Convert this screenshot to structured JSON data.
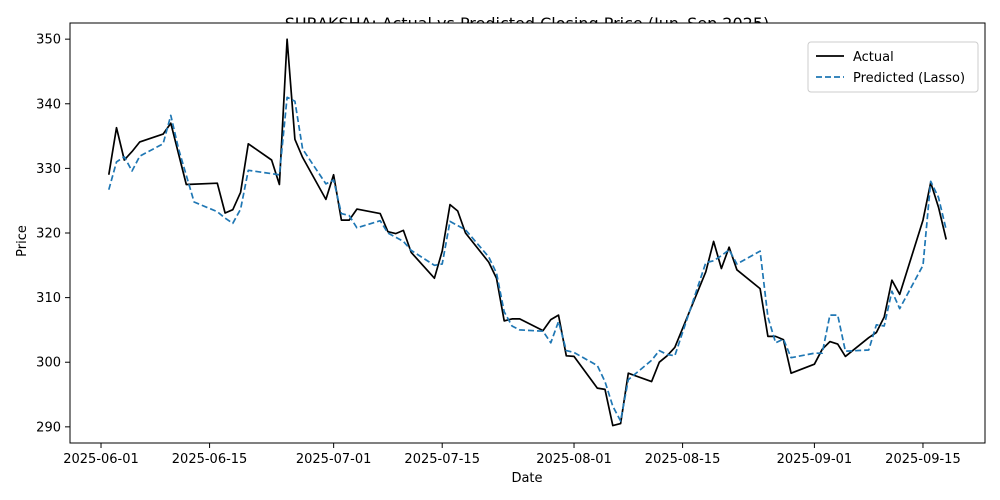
{
  "chart_data": {
    "type": "line",
    "title": "SURAKSHA: Actual vs Predicted Closing Price (Jun–Sep 2025)",
    "xlabel": "Date",
    "ylabel": "Price",
    "xlim": [
      "2025-05-28",
      "2025-09-23"
    ],
    "ylim": [
      287.5,
      352.5
    ],
    "x_ticks": [
      "2025-06-01",
      "2025-06-15",
      "2025-07-01",
      "2025-07-15",
      "2025-08-01",
      "2025-08-15",
      "2025-09-01",
      "2025-09-15"
    ],
    "y_ticks": [
      290,
      300,
      310,
      320,
      330,
      340,
      350
    ],
    "grid": false,
    "legend": "top-right",
    "series": [
      {
        "name": "Actual",
        "color": "#000000",
        "style": "solid",
        "points": [
          [
            "2025-06-02",
            329.0
          ],
          [
            "2025-06-03",
            336.3
          ],
          [
            "2025-06-04",
            331.3
          ],
          [
            "2025-06-05",
            332.6
          ],
          [
            "2025-06-06",
            334.1
          ],
          [
            "2025-06-09",
            335.3
          ],
          [
            "2025-06-10",
            337.0
          ],
          [
            "2025-06-12",
            327.5
          ],
          [
            "2025-06-16",
            327.7
          ],
          [
            "2025-06-17",
            323.1
          ],
          [
            "2025-06-18",
            323.6
          ],
          [
            "2025-06-19",
            326.3
          ],
          [
            "2025-06-20",
            333.8
          ],
          [
            "2025-06-23",
            331.3
          ],
          [
            "2025-06-24",
            327.5
          ],
          [
            "2025-06-25",
            350.0
          ],
          [
            "2025-06-26",
            334.5
          ],
          [
            "2025-06-27",
            331.7
          ],
          [
            "2025-06-30",
            325.2
          ],
          [
            "2025-07-01",
            329.0
          ],
          [
            "2025-07-02",
            322.0
          ],
          [
            "2025-07-03",
            322.0
          ],
          [
            "2025-07-04",
            323.7
          ],
          [
            "2025-07-07",
            323.0
          ],
          [
            "2025-07-08",
            320.2
          ],
          [
            "2025-07-09",
            319.9
          ],
          [
            "2025-07-10",
            320.4
          ],
          [
            "2025-07-11",
            317.0
          ],
          [
            "2025-07-14",
            313.0
          ],
          [
            "2025-07-15",
            317.2
          ],
          [
            "2025-07-16",
            324.4
          ],
          [
            "2025-07-17",
            323.4
          ],
          [
            "2025-07-18",
            320.0
          ],
          [
            "2025-07-21",
            315.5
          ],
          [
            "2025-07-22",
            313.0
          ],
          [
            "2025-07-23",
            306.4
          ],
          [
            "2025-07-24",
            306.7
          ],
          [
            "2025-07-25",
            306.7
          ],
          [
            "2025-07-28",
            304.9
          ],
          [
            "2025-07-29",
            306.6
          ],
          [
            "2025-07-30",
            307.3
          ],
          [
            "2025-07-31",
            301.0
          ],
          [
            "2025-08-01",
            300.9
          ],
          [
            "2025-08-04",
            296.0
          ],
          [
            "2025-08-05",
            295.8
          ],
          [
            "2025-08-06",
            290.2
          ],
          [
            "2025-08-07",
            290.5
          ],
          [
            "2025-08-08",
            298.3
          ],
          [
            "2025-08-11",
            297.0
          ],
          [
            "2025-08-12",
            300.0
          ],
          [
            "2025-08-13",
            301.0
          ],
          [
            "2025-08-14",
            302.3
          ],
          [
            "2025-08-18",
            314.0
          ],
          [
            "2025-08-19",
            318.7
          ],
          [
            "2025-08-20",
            314.5
          ],
          [
            "2025-08-21",
            317.8
          ],
          [
            "2025-08-22",
            314.3
          ],
          [
            "2025-08-25",
            311.4
          ],
          [
            "2025-08-26",
            304.0
          ],
          [
            "2025-08-27",
            304.0
          ],
          [
            "2025-08-28",
            303.5
          ],
          [
            "2025-08-29",
            298.3
          ],
          [
            "2025-09-01",
            299.7
          ],
          [
            "2025-09-02",
            302.0
          ],
          [
            "2025-09-03",
            303.2
          ],
          [
            "2025-09-04",
            302.8
          ],
          [
            "2025-09-05",
            300.9
          ],
          [
            "2025-09-08",
            303.8
          ],
          [
            "2025-09-09",
            304.6
          ],
          [
            "2025-09-10",
            307.0
          ],
          [
            "2025-09-11",
            312.7
          ],
          [
            "2025-09-12",
            310.5
          ],
          [
            "2025-09-15",
            322.0
          ],
          [
            "2025-09-16",
            327.8
          ],
          [
            "2025-09-17",
            324.0
          ],
          [
            "2025-09-18",
            319.0
          ]
        ]
      },
      {
        "name": "Predicted (Lasso)",
        "color": "#1f77b4",
        "style": "dashed",
        "points": [
          [
            "2025-06-02",
            326.7
          ],
          [
            "2025-06-03",
            331.0
          ],
          [
            "2025-06-04",
            331.8
          ],
          [
            "2025-06-05",
            329.6
          ],
          [
            "2025-06-06",
            331.9
          ],
          [
            "2025-06-09",
            333.8
          ],
          [
            "2025-06-10",
            338.2
          ],
          [
            "2025-06-11",
            333.0
          ],
          [
            "2025-06-13",
            324.8
          ],
          [
            "2025-06-16",
            323.3
          ],
          [
            "2025-06-17",
            322.3
          ],
          [
            "2025-06-18",
            321.5
          ],
          [
            "2025-06-19",
            323.7
          ],
          [
            "2025-06-20",
            329.7
          ],
          [
            "2025-06-24",
            329.0
          ],
          [
            "2025-06-25",
            341.0
          ],
          [
            "2025-06-26",
            340.4
          ],
          [
            "2025-06-27",
            333.0
          ],
          [
            "2025-06-30",
            327.6
          ],
          [
            "2025-07-01",
            328.2
          ],
          [
            "2025-07-02",
            323.0
          ],
          [
            "2025-07-03",
            322.7
          ],
          [
            "2025-07-04",
            320.8
          ],
          [
            "2025-07-07",
            321.9
          ],
          [
            "2025-07-08",
            320.0
          ],
          [
            "2025-07-10",
            318.7
          ],
          [
            "2025-07-11",
            317.3
          ],
          [
            "2025-07-14",
            315.0
          ],
          [
            "2025-07-15",
            315.2
          ],
          [
            "2025-07-16",
            321.8
          ],
          [
            "2025-07-18",
            320.5
          ],
          [
            "2025-07-21",
            316.3
          ],
          [
            "2025-07-22",
            313.8
          ],
          [
            "2025-07-23",
            307.8
          ],
          [
            "2025-07-24",
            305.6
          ],
          [
            "2025-07-25",
            305.0
          ],
          [
            "2025-07-28",
            304.8
          ],
          [
            "2025-07-29",
            303.0
          ],
          [
            "2025-07-30",
            306.3
          ],
          [
            "2025-07-31",
            301.8
          ],
          [
            "2025-08-01",
            301.5
          ],
          [
            "2025-08-04",
            299.5
          ],
          [
            "2025-08-05",
            297.0
          ],
          [
            "2025-08-06",
            293.2
          ],
          [
            "2025-08-07",
            290.9
          ],
          [
            "2025-08-08",
            297.3
          ],
          [
            "2025-08-11",
            300.3
          ],
          [
            "2025-08-12",
            301.8
          ],
          [
            "2025-08-13",
            301.2
          ],
          [
            "2025-08-14",
            301.0
          ],
          [
            "2025-08-18",
            315.4
          ],
          [
            "2025-08-19",
            315.7
          ],
          [
            "2025-08-20",
            316.5
          ],
          [
            "2025-08-21",
            317.4
          ],
          [
            "2025-08-22",
            315.2
          ],
          [
            "2025-08-25",
            317.2
          ],
          [
            "2025-08-26",
            307.0
          ],
          [
            "2025-08-27",
            303.0
          ],
          [
            "2025-08-28",
            303.6
          ],
          [
            "2025-08-29",
            300.7
          ],
          [
            "2025-09-01",
            301.4
          ],
          [
            "2025-09-02",
            301.4
          ],
          [
            "2025-09-03",
            307.3
          ],
          [
            "2025-09-04",
            307.3
          ],
          [
            "2025-09-05",
            301.7
          ],
          [
            "2025-09-08",
            301.9
          ],
          [
            "2025-09-09",
            305.8
          ],
          [
            "2025-09-10",
            305.6
          ],
          [
            "2025-09-11",
            311.0
          ],
          [
            "2025-09-12",
            308.3
          ],
          [
            "2025-09-15",
            315.0
          ],
          [
            "2025-09-16",
            328.0
          ],
          [
            "2025-09-17",
            325.5
          ],
          [
            "2025-09-18",
            320.5
          ]
        ]
      }
    ]
  }
}
